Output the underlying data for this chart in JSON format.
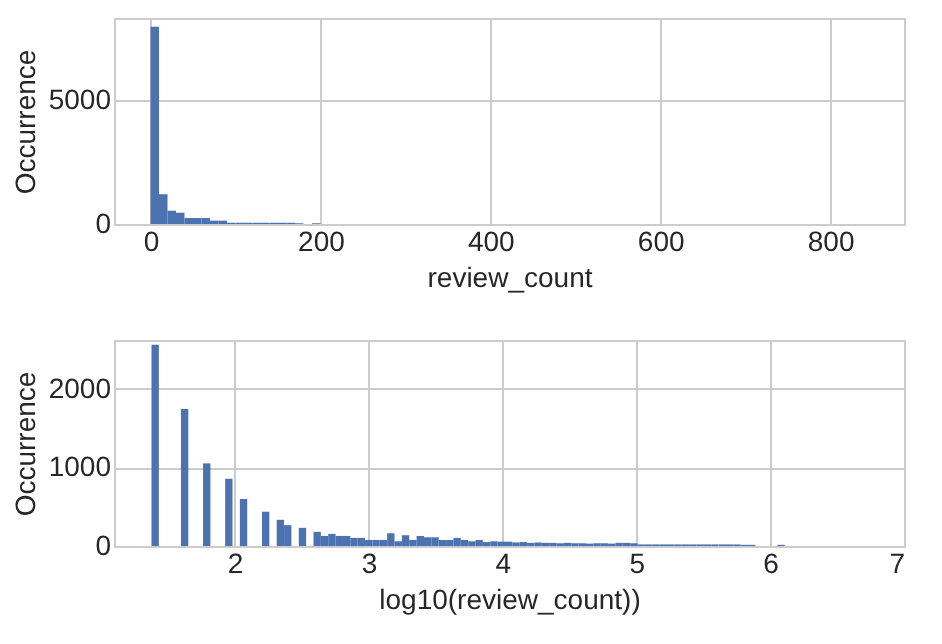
{
  "chart_data": [
    {
      "type": "histogram",
      "xlabel": "review_count",
      "ylabel": "Occurrence",
      "color": "#4c72b0",
      "grid": true,
      "bins": [
        0,
        10,
        20,
        30,
        40,
        50,
        60,
        70,
        80,
        90,
        100,
        110,
        120,
        130,
        140,
        150,
        160,
        170,
        180,
        190,
        200
      ],
      "values": [
        7950,
        1200,
        535,
        455,
        240,
        240,
        240,
        135,
        135,
        50,
        50,
        50,
        50,
        50,
        50,
        50,
        50,
        30,
        0,
        30
      ],
      "xlim": [
        -43,
        887
      ],
      "xticks": [
        0,
        200,
        400,
        600,
        800
      ],
      "ylim": [
        0,
        8300
      ],
      "yticks": [
        0,
        5000
      ]
    },
    {
      "type": "histogram",
      "xlabel": "log10(review_count))",
      "ylabel": "Occurrence",
      "color": "#4c72b0",
      "grid": true,
      "bins": [
        1.38,
        1.435,
        1.49,
        1.545,
        1.6,
        1.655,
        1.71,
        1.765,
        1.82,
        1.875,
        1.93,
        1.985,
        2.04,
        2.095,
        2.15,
        2.205,
        2.26,
        2.315,
        2.37,
        2.425,
        2.48,
        2.535,
        2.59,
        2.645,
        2.7,
        2.755,
        2.81,
        2.865,
        2.92,
        2.975,
        3.03,
        3.085,
        3.14,
        3.195,
        3.25,
        3.305,
        3.36,
        3.415,
        3.47,
        3.525,
        3.58,
        3.635,
        3.69,
        3.745,
        3.8,
        3.855,
        3.91,
        3.965,
        4.02,
        4.075,
        4.13,
        4.185,
        4.24,
        4.295,
        4.35,
        4.405,
        4.46,
        4.515,
        4.57,
        4.625,
        4.68,
        4.735,
        4.79,
        4.845,
        4.9,
        4.955,
        5.01,
        5.065,
        5.12,
        5.175,
        5.23,
        5.285,
        5.34,
        5.395,
        5.45,
        5.505,
        5.56,
        5.615,
        5.67,
        5.725,
        5.78,
        5.835,
        5.89,
        5.945,
        6.0,
        6.055,
        6.11
      ],
      "values": [
        2560,
        0,
        0,
        0,
        1744,
        0,
        0,
        1051,
        0,
        0,
        855,
        0,
        598,
        0,
        0,
        436,
        0,
        333,
        265,
        0,
        231,
        0,
        180,
        128,
        154,
        128,
        128,
        103,
        103,
        77,
        77,
        77,
        162,
        60,
        137,
        77,
        128,
        111,
        111,
        77,
        77,
        103,
        77,
        60,
        77,
        50,
        60,
        55,
        55,
        45,
        50,
        40,
        45,
        40,
        40,
        35,
        40,
        35,
        35,
        30,
        35,
        35,
        30,
        40,
        40,
        35,
        20,
        20,
        20,
        20,
        20,
        20,
        20,
        20,
        20,
        20,
        20,
        20,
        20,
        20,
        15,
        15,
        0,
        0,
        0,
        15
      ],
      "xlim": [
        1.1,
        7.0
      ],
      "xticks": [
        2,
        3,
        4,
        5,
        6,
        7
      ],
      "ylim": [
        0,
        2620
      ],
      "yticks": [
        0,
        1000,
        2000
      ]
    }
  ]
}
